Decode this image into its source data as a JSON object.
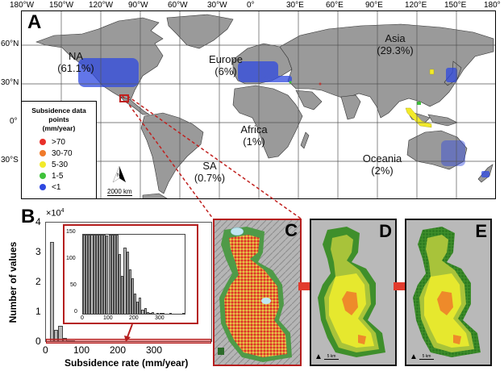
{
  "figure": {
    "panel_labels": [
      "A",
      "B",
      "C",
      "D",
      "E"
    ]
  },
  "map": {
    "longitude_ticks": [
      "180°W",
      "150°W",
      "120°W",
      "90°W",
      "60°W",
      "30°W",
      "0°",
      "30°E",
      "60°E",
      "90°E",
      "120°E",
      "150°E",
      "180°"
    ],
    "latitude_ticks": [
      "60°N",
      "30°N",
      "0°",
      "30°S"
    ],
    "regions": [
      {
        "name": "NA",
        "share": "(61.1%)"
      },
      {
        "name": "Europe",
        "share": "(6%)"
      },
      {
        "name": "Asia",
        "share": "(29.3%)"
      },
      {
        "name": "Africa",
        "share": "(1%)"
      },
      {
        "name": "SA",
        "share": "(0.7%)"
      },
      {
        "name": "Oceania",
        "share": "(2%)"
      }
    ],
    "scale_bar": "2000 km",
    "north_arrow": "N",
    "legend": {
      "title_line1": "Subsidence data",
      "title_line2": "points",
      "title_line3": "(mm/year)",
      "items": [
        {
          "label": ">70",
          "color": "#e8302a"
        },
        {
          "label": "30-70",
          "color": "#f07a2a"
        },
        {
          "label": "5-30",
          "color": "#f2ea2a"
        },
        {
          "label": "1-5",
          "color": "#3fc23a"
        },
        {
          "label": "<1",
          "color": "#2e48e0"
        }
      ]
    }
  },
  "panels": {
    "D_scale": "5 km",
    "E_scale": "5 km"
  },
  "chart_data": [
    {
      "type": "bar",
      "title": "B",
      "xlabel": "Subsidence rate (mm/year)",
      "ylabel": "Number of values",
      "y_multiplier": "×10^4",
      "x_ticks": [
        "0",
        "100",
        "200",
        "300"
      ],
      "y_ticks": [
        "0",
        "1",
        "2",
        "3",
        "4"
      ],
      "xlim": [
        -10,
        390
      ],
      "ylim": [
        0,
        40000
      ],
      "bin_width": 10,
      "categories": [
        0,
        10,
        20,
        30,
        40,
        50
      ],
      "values": [
        33500,
        3800,
        5300,
        1000,
        300,
        150
      ]
    },
    {
      "type": "bar",
      "title": "B inset (zoomed y-axis)",
      "x_ticks": [
        "0",
        "100",
        "200",
        "300"
      ],
      "y_ticks": [
        "0",
        "50",
        "100",
        "150"
      ],
      "xlim": [
        0,
        400
      ],
      "ylim": [
        0,
        150
      ],
      "bin_width": 10,
      "categories": [
        0,
        10,
        20,
        30,
        40,
        50,
        60,
        70,
        80,
        90,
        100,
        110,
        120,
        130,
        140,
        150,
        160,
        170,
        180,
        190,
        200,
        210,
        220,
        230,
        240,
        250,
        260,
        270,
        280,
        290,
        300,
        310,
        320,
        330,
        340,
        350,
        360,
        370,
        380,
        390
      ],
      "values": [
        150,
        150,
        150,
        150,
        150,
        150,
        150,
        150,
        150,
        148,
        150,
        150,
        150,
        150,
        113,
        72,
        125,
        118,
        84,
        68,
        38,
        23,
        30,
        8,
        11,
        3,
        2,
        3,
        0,
        1,
        1,
        1,
        0,
        0,
        1,
        0,
        0,
        0,
        0,
        1
      ]
    }
  ]
}
